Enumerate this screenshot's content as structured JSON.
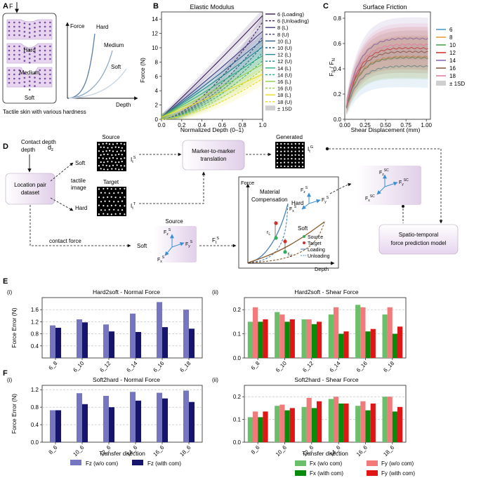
{
  "panel_letters": {
    "A": "A",
    "B": "B",
    "C": "C",
    "D": "D",
    "E": "E",
    "F": "F"
  },
  "panelA": {
    "force_arrow": "F",
    "samples": [
      "Hard",
      "Medium",
      "Soft"
    ],
    "caption": "Tactile skin with various hardness",
    "graph": {
      "ylabel": "Force",
      "xlabel": "Depth",
      "curves": [
        "Hard",
        "Medium",
        "Soft"
      ]
    }
  },
  "chart_data": [
    {
      "id": "elastic",
      "type": "line",
      "title": "Elastic Modulus",
      "xlabel": "Normalized Depth (0–1)",
      "ylabel": "Force (N)",
      "xlim": [
        0,
        1
      ],
      "ylim": [
        0,
        15
      ],
      "xticks": [
        "0.0",
        "0.2",
        "0.4",
        "0.6",
        "0.8",
        "1.0"
      ],
      "yticks": [
        "0",
        "2",
        "4",
        "6",
        "8",
        "10",
        "12",
        "14"
      ],
      "series": [
        {
          "name": "6 (Loading)",
          "color": "#3b1a5a",
          "dash": "solid",
          "y_end": 14.2,
          "curv": 0.35
        },
        {
          "name": "6 (Unloading)",
          "color": "#3b1a5a",
          "dash": "dash",
          "y_end": 13.6,
          "curv": 1.6
        },
        {
          "name": "8 (L)",
          "color": "#433a80",
          "dash": "solid",
          "y_end": 12.0,
          "curv": 0.4
        },
        {
          "name": "8 (U)",
          "color": "#433a80",
          "dash": "dash",
          "y_end": 11.5,
          "curv": 1.6
        },
        {
          "name": "10 (L)",
          "color": "#2d5d8e",
          "dash": "solid",
          "y_end": 10.8,
          "curv": 0.42
        },
        {
          "name": "10 (U)",
          "color": "#2d5d8e",
          "dash": "dash",
          "y_end": 10.3,
          "curv": 1.6
        },
        {
          "name": "12 (L)",
          "color": "#1f8a8c",
          "dash": "solid",
          "y_end": 9.8,
          "curv": 0.45
        },
        {
          "name": "12 (U)",
          "color": "#1f8a8c",
          "dash": "dash",
          "y_end": 9.3,
          "curv": 1.6
        },
        {
          "name": "14 (L)",
          "color": "#27ae7c",
          "dash": "solid",
          "y_end": 8.6,
          "curv": 0.48
        },
        {
          "name": "14 (U)",
          "color": "#27ae7c",
          "dash": "dash",
          "y_end": 8.2,
          "curv": 1.6
        },
        {
          "name": "16 (L)",
          "color": "#8fce45",
          "dash": "solid",
          "y_end": 7.4,
          "curv": 0.5
        },
        {
          "name": "16 (U)",
          "color": "#8fce45",
          "dash": "dash",
          "y_end": 7.0,
          "curv": 1.6
        },
        {
          "name": "18 (L)",
          "color": "#e5dc22",
          "dash": "solid",
          "y_end": 6.0,
          "curv": 0.55
        },
        {
          "name": "18 (U)",
          "color": "#e5dc22",
          "dash": "dash",
          "y_end": 5.7,
          "curv": 1.6
        }
      ],
      "sd_label": "± 1SD"
    },
    {
      "id": "friction",
      "type": "line",
      "title": "Surface Friction",
      "xlabel": "Shear Displacement (mm)",
      "ylabel_main": "F",
      "ylabel_sub1": "S",
      "ylabel_sep": " / F",
      "ylabel_sub2": "N",
      "xlim": [
        0,
        1.05
      ],
      "ylim": [
        0,
        0.85
      ],
      "xticks": [
        "0.00",
        "0.25",
        "0.50",
        "0.75",
        "1.00"
      ],
      "yticks": [
        "0.0",
        "0.2",
        "0.4",
        "0.6",
        "0.8"
      ],
      "series": [
        {
          "name": "6",
          "color": "#4d9ec8",
          "plateau": 0.4
        },
        {
          "name": "8",
          "color": "#e7a23c",
          "plateau": 0.48
        },
        {
          "name": "10",
          "color": "#4aa84a",
          "plateau": 0.47
        },
        {
          "name": "12",
          "color": "#d23b30",
          "plateau": 0.55
        },
        {
          "name": "14",
          "color": "#8d6bb5",
          "plateau": 0.63
        },
        {
          "name": "16",
          "color": "#8c5a46",
          "plateau": 0.52
        },
        {
          "name": "18",
          "color": "#e27fa0",
          "plateau": 0.58
        }
      ],
      "sd_label": "± 1SD"
    },
    {
      "id": "e_i",
      "type": "bar",
      "label": "(i)",
      "title": "Hard2soft - Normal Force",
      "ylabel": "Force Error (N)",
      "categories": [
        "6_8",
        "6_10",
        "6_12",
        "6_14",
        "6_16",
        "6_18"
      ],
      "ylim": [
        0,
        2.0
      ],
      "yticks": [
        "0.4",
        "0.8",
        "1.2",
        "1.6"
      ],
      "series": [
        {
          "name": "Fz (w/o com)",
          "color": "#7575c0",
          "values": [
            1.08,
            1.28,
            1.11,
            1.47,
            1.85,
            1.6
          ]
        },
        {
          "name": "Fz (with com)",
          "color": "#15156e",
          "values": [
            1.0,
            1.18,
            0.88,
            0.86,
            1.02,
            0.97
          ]
        }
      ]
    },
    {
      "id": "e_ii",
      "type": "bar",
      "label": "(ii)",
      "title": "Hard2soft - Shear Force",
      "categories": [
        "6_8",
        "6_10",
        "6_12",
        "6_14",
        "6_16",
        "6_18"
      ],
      "ylim": [
        0,
        0.25
      ],
      "yticks": [
        "0.0",
        "0.1",
        "0.2"
      ],
      "series": [
        {
          "name": "Fx (w/o com)",
          "color": "#6bbf6b",
          "values": [
            0.15,
            0.19,
            0.16,
            0.18,
            0.22,
            0.18
          ]
        },
        {
          "name": "Fy (w/o com)",
          "color": "#f27a7a",
          "values": [
            0.21,
            0.18,
            0.16,
            0.21,
            0.21,
            0.21
          ]
        },
        {
          "name": "Fx (with com)",
          "color": "#0a8a0a",
          "values": [
            0.15,
            0.15,
            0.14,
            0.1,
            0.11,
            0.1
          ]
        },
        {
          "name": "Fy (with com)",
          "color": "#e01515",
          "values": [
            0.16,
            0.16,
            0.15,
            0.11,
            0.12,
            0.13
          ]
        }
      ]
    },
    {
      "id": "f_i",
      "type": "bar",
      "label": "(i)",
      "title": "Soft2hard - Normal Force",
      "ylabel": "Force Error (N)",
      "xlabel": "Transfer direction",
      "categories": [
        "8_6",
        "10_6",
        "12_6",
        "14_6",
        "16_6",
        "18_6"
      ],
      "ylim": [
        0,
        1.3
      ],
      "yticks": [
        "0.0",
        "0.4",
        "0.8",
        "1.2"
      ],
      "series": [
        {
          "name": "Fz (w/o com)",
          "color": "#7575c0",
          "values": [
            0.73,
            1.12,
            1.06,
            1.15,
            1.13,
            1.18
          ]
        },
        {
          "name": "Fz (with com)",
          "color": "#15156e",
          "values": [
            0.73,
            0.87,
            0.8,
            0.95,
            1.0,
            0.92
          ]
        }
      ]
    },
    {
      "id": "f_ii",
      "type": "bar",
      "label": "(ii)",
      "title": "Soft2hard - Shear Force",
      "xlabel": "Transfer direction",
      "categories": [
        "8_6",
        "10_6",
        "12_6",
        "14_6",
        "16_6",
        "18_6"
      ],
      "ylim": [
        0,
        0.25
      ],
      "yticks": [
        "0.0",
        "0.1",
        "0.2"
      ],
      "series": [
        {
          "name": "Fx (w/o com)",
          "color": "#6bbf6b",
          "values": [
            0.11,
            0.16,
            0.155,
            0.19,
            0.16,
            0.2
          ]
        },
        {
          "name": "Fy (w/o com)",
          "color": "#f27a7a",
          "values": [
            0.135,
            0.165,
            0.195,
            0.2,
            0.18,
            0.2
          ]
        },
        {
          "name": "Fx (with com)",
          "color": "#0a8a0a",
          "values": [
            0.11,
            0.14,
            0.15,
            0.17,
            0.14,
            0.135
          ]
        },
        {
          "name": "Fy (with com)",
          "color": "#e01515",
          "values": [
            0.135,
            0.15,
            0.18,
            0.17,
            0.17,
            0.155
          ]
        }
      ]
    }
  ],
  "panelD": {
    "contact_depth": "Contact depth",
    "dz": "d",
    "dz_sub": "z",
    "dataset": "Location pair dataset",
    "soft": "Soft",
    "hard": "Hard",
    "tactile_image": "tactile image",
    "source": "Source",
    "target": "Target",
    "it_s_main": "I",
    "it_s_sub": "t",
    "it_s_sup": "S",
    "it_t_main": "I",
    "it_t_sub": "t",
    "it_t_sup": "T",
    "m2m_line1": "Marker-to-marker",
    "m2m_line2": "translation",
    "generated": "Generated",
    "it_g_main": "I",
    "it_g_sub": "t",
    "it_g_sup": "G",
    "contact_force": "contact force",
    "force_source": "Source",
    "fs_z": "F",
    "fs_z_sub": "z",
    "fs_z_sup": "S",
    "fs_y": "F",
    "fs_y_sub": "y",
    "fs_y_sup": "S",
    "fs_x": "F",
    "fs_x_sub": "x",
    "fs_x_sup": "S",
    "ft_s": "F",
    "ft_s_sub": "t",
    "ft_s_sup": "S",
    "soft2": "Soft",
    "graph_force": "Force",
    "graph_depth": "Depth",
    "material_line1": "Material",
    "material_line2": "Compensation",
    "graph_hard": "Hard",
    "graph_soft": "Soft",
    "rl": "r",
    "rl_sub": "L",
    "ru": "r",
    "ru_sub": "U",
    "legend_source": "Source",
    "legend_target": "Target",
    "legend_loading": "Loading",
    "legend_unloading": "Unloading",
    "fsc_z": "F",
    "fsc_z_sub": "z",
    "fsc_z_sup": "SC",
    "fsc_y": "F",
    "fsc_y_sub": "y",
    "fsc_y_sup": "SC",
    "fsc_x": "F",
    "fsc_x_sub": "x",
    "fsc_x_sup": "SC",
    "model_line1": "Spatio-temporal",
    "model_line2": "force prediction model"
  },
  "legend_bottom": {
    "left": [
      "Fz (w/o com)",
      "Fz (with com)"
    ],
    "right": [
      "Fx (w/o com)",
      "Fy (w/o com)",
      "Fx (with com)",
      "Fy (with com)"
    ]
  },
  "colors": {
    "purple_box": "#eadff0",
    "membrane": "#e7d4ef",
    "dot": "#7a4aa0"
  }
}
